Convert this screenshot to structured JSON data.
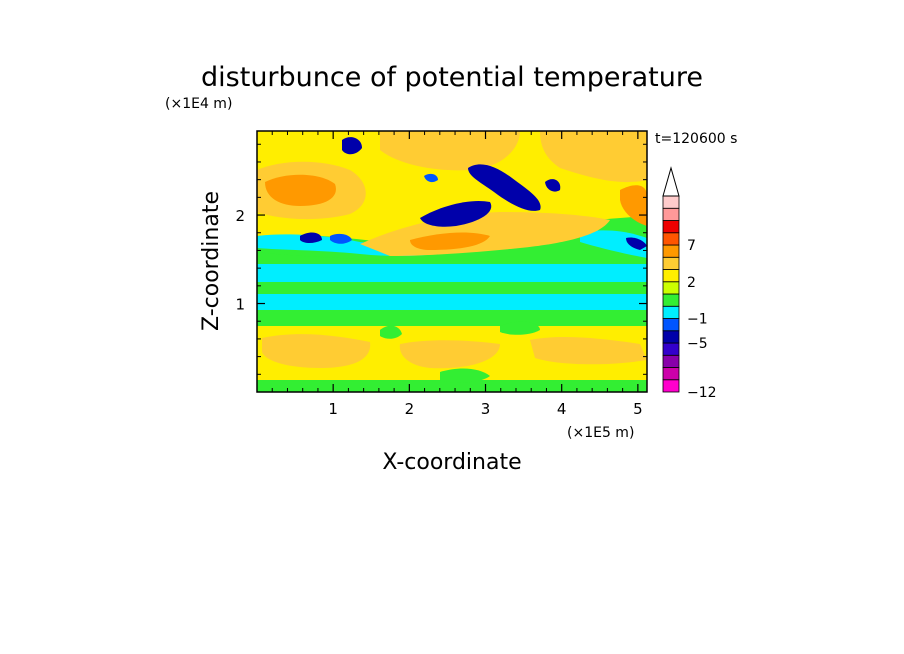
{
  "chart_data": {
    "type": "heatmap",
    "title": "disturbunce of potential temperature",
    "xlabel": "X-coordinate",
    "ylabel": "Z-coordinate",
    "x_unit": "(×1E5 m)",
    "y_unit": "(×1E4 m)",
    "time_label": "t=120600 s",
    "xlim": [
      0,
      5.12
    ],
    "ylim": [
      0,
      2.95
    ],
    "x_ticks": [
      1,
      2,
      3,
      4,
      5
    ],
    "y_ticks": [
      1,
      2
    ],
    "x_tick_labels": [
      "1",
      "2",
      "3",
      "4",
      "5"
    ],
    "y_tick_labels": [
      "1",
      "2"
    ],
    "colorbar": {
      "levels": [
        -12,
        -11,
        -9,
        -7,
        -5,
        -3,
        -1,
        0,
        1,
        2,
        3,
        5,
        7,
        9,
        11
      ],
      "labeled_levels": [
        -12,
        -5,
        -1,
        2,
        7
      ],
      "labels": [
        "−12",
        "−5",
        "−1",
        "2",
        "7"
      ],
      "colors": [
        "#ff00cc",
        "#cc00aa",
        "#8800aa",
        "#3300cc",
        "#0000aa",
        "#0055ff",
        "#00eeff",
        "#33ee33",
        "#ccff00",
        "#ffee00",
        "#ffcc33",
        "#ff9900",
        "#ff5500",
        "#ee0000",
        "#ff9999",
        "#ffcccc"
      ],
      "extend": "max"
    }
  }
}
